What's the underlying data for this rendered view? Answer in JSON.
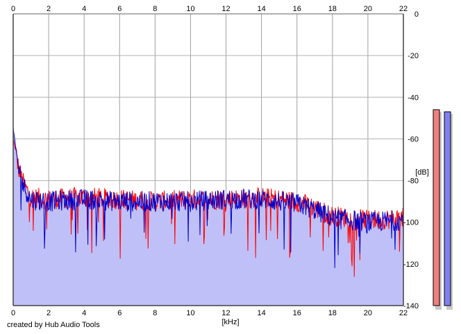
{
  "chart_data": {
    "type": "area",
    "x_unit_label": "[kHz]",
    "y_unit_label": "[dB]",
    "x_ticks": [
      "0",
      "2",
      "4",
      "6",
      "8",
      "10",
      "12",
      "14",
      "16",
      "18",
      "20",
      "22"
    ],
    "y_ticks": [
      "0",
      "-20",
      "-40",
      "-60",
      "-80",
      "-100",
      "-120",
      "-140"
    ],
    "xlim": [
      0,
      22
    ],
    "ylim": [
      -140,
      0
    ],
    "grid": true,
    "series": [
      {
        "color": "#ff0000",
        "envelope_x": [
          0,
          0.1,
          0.3,
          0.6,
          1,
          2,
          4,
          6,
          8,
          10,
          12,
          14,
          16,
          17,
          18,
          20,
          22
        ],
        "envelope_y": [
          -60,
          -64,
          -74,
          -82,
          -88,
          -89,
          -88,
          -89,
          -90,
          -89,
          -89,
          -88,
          -90,
          -93,
          -97,
          -99,
          -98
        ]
      },
      {
        "color": "#0000cc",
        "envelope_x": [
          0,
          0.1,
          0.3,
          0.6,
          1,
          2,
          4,
          6,
          8,
          10,
          12,
          14,
          16,
          17,
          18,
          20,
          22
        ],
        "envelope_y": [
          -55,
          -62,
          -74,
          -83,
          -89,
          -90,
          -89,
          -90,
          -90,
          -90,
          -89,
          -89,
          -91,
          -94,
          -98,
          -100,
          -99
        ]
      }
    ],
    "fill_color": "#c0c0f8"
  },
  "level_meters": [
    {
      "channel_color": "#f08080",
      "level_db": -46
    },
    {
      "channel_color": "#8080f0",
      "level_db": -47
    }
  ],
  "footer": {
    "credit": "created by Hub Audio Tools"
  }
}
